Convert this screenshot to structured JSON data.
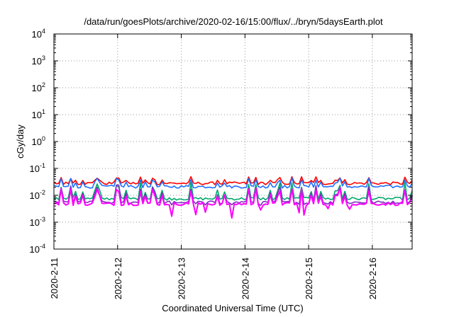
{
  "chart_data": {
    "type": "line",
    "title": "/data/run/goesPlots/archive/2020-02-16/15:00/flux/../bryn/5daysEarth.plot",
    "xlabel": "Coordinated Universal Time (UTC)",
    "ylabel": "cGy/day",
    "y_scale": "log",
    "ylim": [
      0.0001,
      10000
    ],
    "y_ticks": [
      {
        "value": 0.0001,
        "base": "10",
        "exp": "-4"
      },
      {
        "value": 0.001,
        "base": "10",
        "exp": "-3"
      },
      {
        "value": 0.01,
        "base": "10",
        "exp": "-2"
      },
      {
        "value": 0.1,
        "base": "10",
        "exp": "-1"
      },
      {
        "value": 1,
        "base": "10",
        "exp": "0"
      },
      {
        "value": 10,
        "base": "10",
        "exp": "1"
      },
      {
        "value": 100,
        "base": "10",
        "exp": "2"
      },
      {
        "value": 1000,
        "base": "10",
        "exp": "3"
      },
      {
        "value": 10000,
        "base": "10",
        "exp": "4"
      }
    ],
    "xlim": [
      "2020-02-11T00:00",
      "2020-02-16T15:00"
    ],
    "x_ticks": [
      {
        "value": "2020-02-11T00:00",
        "label": "2020-2-11"
      },
      {
        "value": "2020-02-12T00:00",
        "label": "2020-2-12"
      },
      {
        "value": "2020-02-13T00:00",
        "label": "2020-2-13"
      },
      {
        "value": "2020-02-14T00:00",
        "label": "2020-2-14"
      },
      {
        "value": "2020-02-15T00:00",
        "label": "2020-2-15"
      },
      {
        "value": "2020-02-16T00:00",
        "label": "2020-2-16"
      }
    ],
    "grid": true,
    "series": [
      {
        "color": "#ff0000",
        "base": 0.028,
        "spike": 0.05,
        "dip": 0.022
      },
      {
        "color": "#1f6fff",
        "base": 0.021,
        "spike": 0.045,
        "dip": 0.015
      },
      {
        "color": "#00a86b",
        "base": 0.0075,
        "spike": 0.03,
        "dip": 0.005
      },
      {
        "color": "#7b2fbe",
        "base": 0.0055,
        "spike": 0.025,
        "dip": 0.0042
      },
      {
        "color": "#ff00ff",
        "base": 0.0048,
        "spike": 0.02,
        "dip": 0.0014
      }
    ]
  }
}
